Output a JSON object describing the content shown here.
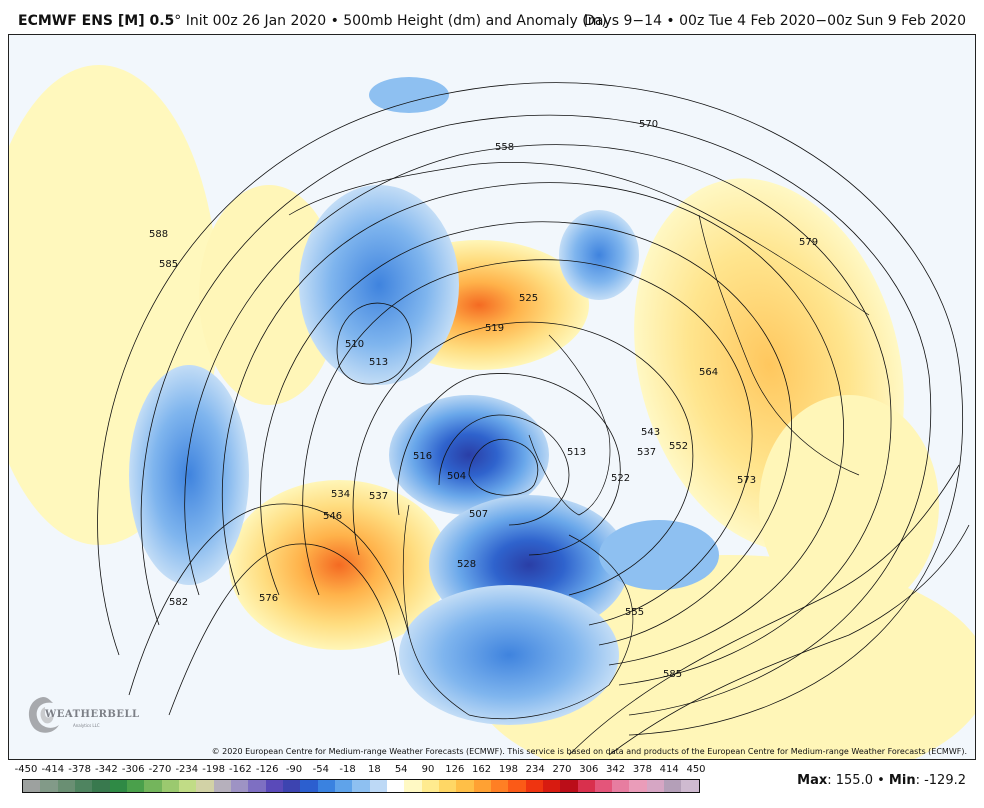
{
  "header": {
    "model": "ECMWF ENS [M] 0.5",
    "degree": "°",
    "init": " Init 00z 26 Jan 2020 • 500mb Height (dm) and Anomaly (m)",
    "valid": "Days 9−14 • 00z Tue 4 Feb 2020−00z Sun 9 Feb 2020"
  },
  "map": {
    "projection": "north-polar-stereographic",
    "background_color": "#f2f7fc",
    "contour_labels": [
      "558",
      "570",
      "579",
      "588",
      "585",
      "510",
      "513",
      "525",
      "519",
      "516",
      "534",
      "537",
      "546",
      "576",
      "582",
      "504",
      "507",
      "528",
      "543",
      "537",
      "552",
      "564",
      "573",
      "513",
      "522",
      "555",
      "585"
    ],
    "copyright": "© 2020 European Centre for Medium-range Weather Forecasts (ECMWF). This service is based on data and products of the European Centre for Medium-range Weather Forecasts (ECMWF)."
  },
  "logo": {
    "text": "WEATHERBELL",
    "subtext": "Analytics LLC"
  },
  "colorbar": {
    "labels": [
      "-450",
      "-414",
      "-378",
      "-342",
      "-306",
      "-270",
      "-234",
      "-198",
      "-162",
      "-126",
      "-90",
      "-54",
      "-18",
      "18",
      "54",
      "90",
      "126",
      "162",
      "198",
      "234",
      "270",
      "306",
      "342",
      "378",
      "414",
      "450"
    ],
    "colors": [
      "#9da19f",
      "#829a88",
      "#6a8f73",
      "#4f8460",
      "#39794e",
      "#2f8a45",
      "#4aa04b",
      "#74b55c",
      "#9bc96f",
      "#c1dc86",
      "#d2d2a6",
      "#b6b0bc",
      "#9e93c4",
      "#7e6fc2",
      "#5a4ab9",
      "#3d44b0",
      "#2c5fcf",
      "#3a82e0",
      "#5fa3ea",
      "#8ec0f1",
      "#bdd9f6",
      "#ffffff",
      "#fff9c4",
      "#ffeb8f",
      "#ffd765",
      "#ffbf47",
      "#ffa133",
      "#ff7f24",
      "#fb5a17",
      "#ef3410",
      "#d81b10",
      "#bb0d18",
      "#d9304d",
      "#e4557a",
      "#e77da0",
      "#ea9cb9",
      "#d6a6c4",
      "#b49fb8",
      "#cfbad0"
    ],
    "max_label": "Max",
    "max_value": ": 155.0",
    "sep": " • ",
    "min_label": "Min",
    "min_value": ": -129.2"
  }
}
